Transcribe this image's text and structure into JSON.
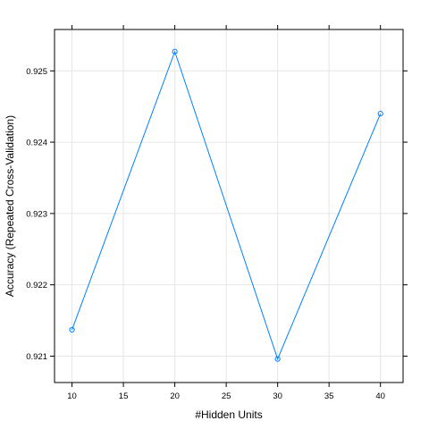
{
  "chart_data": {
    "type": "line",
    "xlabel": "#Hidden Units",
    "ylabel": "Accuracy (Repeated Cross-Validation)",
    "x": [
      10,
      20,
      30,
      40
    ],
    "series": [
      {
        "values": [
          0.92137,
          0.92527,
          0.92096,
          0.9244
        ]
      }
    ],
    "xlim": [
      8.3,
      42.2
    ],
    "ylim": [
      0.92063,
      0.92558
    ],
    "x_ticks": [
      10,
      15,
      20,
      25,
      30,
      35,
      40
    ],
    "x_tick_labels": [
      "10",
      "15",
      "20",
      "25",
      "30",
      "35",
      "40"
    ],
    "y_ticks": [
      0.921,
      0.922,
      0.923,
      0.924,
      0.925
    ],
    "y_tick_labels": [
      "0.921",
      "0.922",
      "0.923",
      "0.924",
      "0.925"
    ],
    "grid": true,
    "markers": "open-circle",
    "colors": {
      "line": "#0080ff",
      "grid": "#e6e6e6",
      "frame": "#000000"
    }
  }
}
